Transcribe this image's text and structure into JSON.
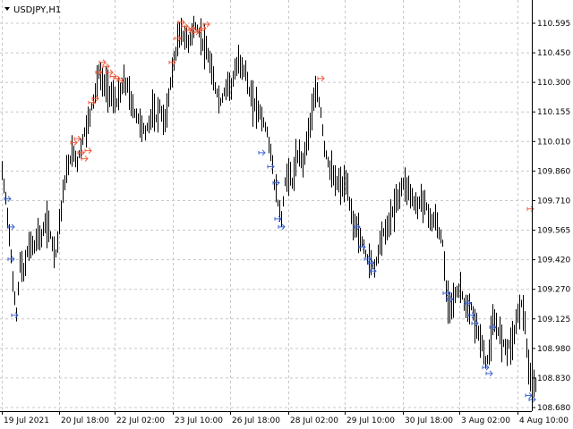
{
  "window": {
    "title": "USDJPY,H1",
    "menu_icon": "triangle-down-icon"
  },
  "colors": {
    "background": "#ffffff",
    "grid": "#c8c8c8",
    "bar": "#000000",
    "sell_arrow": "#f05a3c",
    "buy_arrow": "#3c64d2"
  },
  "chart_data": {
    "type": "bar",
    "symbol": "USDJPY",
    "timeframe": "H1",
    "y_ticks": [
      "110.595",
      "110.450",
      "110.300",
      "110.155",
      "110.010",
      "109.860",
      "109.710",
      "109.565",
      "109.420",
      "109.270",
      "109.125",
      "108.980",
      "108.830",
      "108.680"
    ],
    "x_ticks": [
      "19 Jul 2021",
      "20 Jul 18:00",
      "22 Jul 02:00",
      "23 Jul 10:00",
      "26 Jul 18:00",
      "28 Jul 02:00",
      "29 Jul 10:00",
      "30 Jul 18:00",
      "3 Aug 02:00",
      "4 Aug 10:00"
    ],
    "ylim": [
      108.65,
      110.66
    ],
    "grid": true,
    "series": [
      {
        "role": "price",
        "points": [
          [
            0,
            109.85
          ],
          [
            4,
            109.72
          ],
          [
            8,
            109.55
          ],
          [
            12,
            109.3
          ],
          [
            16,
            109.15
          ],
          [
            20,
            109.4
          ],
          [
            24,
            109.35
          ],
          [
            28,
            109.45
          ],
          [
            32,
            109.5
          ],
          [
            36,
            109.48
          ],
          [
            40,
            109.55
          ],
          [
            44,
            109.52
          ],
          [
            48,
            109.6
          ],
          [
            52,
            109.58
          ],
          [
            56,
            109.5
          ],
          [
            60,
            109.45
          ],
          [
            64,
            109.6
          ],
          [
            68,
            109.75
          ],
          [
            72,
            109.85
          ],
          [
            76,
            109.92
          ],
          [
            80,
            109.95
          ],
          [
            84,
            109.9
          ],
          [
            88,
            109.98
          ],
          [
            92,
            110.05
          ],
          [
            96,
            110.1
          ],
          [
            100,
            110.18
          ],
          [
            104,
            110.25
          ],
          [
            108,
            110.35
          ],
          [
            112,
            110.3
          ],
          [
            116,
            110.28
          ],
          [
            120,
            110.25
          ],
          [
            124,
            110.22
          ],
          [
            128,
            110.2
          ],
          [
            132,
            110.25
          ],
          [
            136,
            110.3
          ],
          [
            140,
            110.28
          ],
          [
            144,
            110.2
          ],
          [
            148,
            110.15
          ],
          [
            152,
            110.12
          ],
          [
            156,
            110.08
          ],
          [
            160,
            110.05
          ],
          [
            164,
            110.1
          ],
          [
            168,
            110.15
          ],
          [
            172,
            110.12
          ],
          [
            176,
            110.18
          ],
          [
            180,
            110.1
          ],
          [
            184,
            110.15
          ],
          [
            188,
            110.3
          ],
          [
            192,
            110.4
          ],
          [
            196,
            110.5
          ],
          [
            200,
            110.55
          ],
          [
            204,
            110.52
          ],
          [
            208,
            110.5
          ],
          [
            212,
            110.55
          ],
          [
            216,
            110.58
          ],
          [
            220,
            110.55
          ],
          [
            224,
            110.5
          ],
          [
            228,
            110.45
          ],
          [
            232,
            110.4
          ],
          [
            236,
            110.3
          ],
          [
            240,
            110.25
          ],
          [
            244,
            110.2
          ],
          [
            248,
            110.25
          ],
          [
            252,
            110.3
          ],
          [
            256,
            110.28
          ],
          [
            260,
            110.35
          ],
          [
            264,
            110.4
          ],
          [
            268,
            110.38
          ],
          [
            272,
            110.35
          ],
          [
            276,
            110.25
          ],
          [
            280,
            110.2
          ],
          [
            284,
            110.18
          ],
          [
            288,
            110.15
          ],
          [
            292,
            110.1
          ],
          [
            296,
            110.05
          ],
          [
            300,
            109.95
          ],
          [
            304,
            109.8
          ],
          [
            308,
            109.7
          ],
          [
            312,
            109.62
          ],
          [
            316,
            109.8
          ],
          [
            320,
            109.85
          ],
          [
            324,
            109.8
          ],
          [
            328,
            109.9
          ],
          [
            332,
            109.95
          ],
          [
            336,
            109.9
          ],
          [
            340,
            110.0
          ],
          [
            344,
            110.1
          ],
          [
            348,
            110.2
          ],
          [
            352,
            110.25
          ],
          [
            356,
            110.15
          ],
          [
            360,
            109.98
          ],
          [
            364,
            109.9
          ],
          [
            368,
            109.85
          ],
          [
            372,
            109.8
          ],
          [
            376,
            109.8
          ],
          [
            380,
            109.78
          ],
          [
            384,
            109.8
          ],
          [
            388,
            109.7
          ],
          [
            392,
            109.6
          ],
          [
            396,
            109.58
          ],
          [
            400,
            109.52
          ],
          [
            404,
            109.48
          ],
          [
            408,
            109.42
          ],
          [
            412,
            109.4
          ],
          [
            416,
            109.38
          ],
          [
            420,
            109.45
          ],
          [
            424,
            109.55
          ],
          [
            428,
            109.55
          ],
          [
            432,
            109.6
          ],
          [
            436,
            109.65
          ],
          [
            440,
            109.7
          ],
          [
            444,
            109.75
          ],
          [
            448,
            109.8
          ],
          [
            452,
            109.78
          ],
          [
            456,
            109.75
          ],
          [
            460,
            109.7
          ],
          [
            464,
            109.68
          ],
          [
            468,
            109.72
          ],
          [
            472,
            109.7
          ],
          [
            476,
            109.65
          ],
          [
            480,
            109.6
          ],
          [
            484,
            109.62
          ],
          [
            488,
            109.55
          ],
          [
            492,
            109.5
          ],
          [
            496,
            109.25
          ],
          [
            500,
            109.2
          ],
          [
            504,
            109.22
          ],
          [
            508,
            109.25
          ],
          [
            512,
            109.28
          ],
          [
            516,
            109.2
          ],
          [
            520,
            109.15
          ],
          [
            524,
            109.18
          ],
          [
            528,
            109.1
          ],
          [
            532,
            109.05
          ],
          [
            536,
            109.0
          ],
          [
            540,
            108.9
          ],
          [
            544,
            108.95
          ],
          [
            548,
            109.1
          ],
          [
            552,
            109.08
          ],
          [
            556,
            109.05
          ],
          [
            560,
            109.0
          ],
          [
            564,
            108.98
          ],
          [
            568,
            109.0
          ],
          [
            572,
            109.05
          ],
          [
            576,
            109.15
          ],
          [
            580,
            109.2
          ],
          [
            584,
            109.1
          ],
          [
            588,
            108.85
          ],
          [
            592,
            108.78
          ],
          [
            596,
            108.8
          ]
        ]
      }
    ],
    "sell_arrows": [
      [
        80,
        110.0
      ],
      [
        84,
        110.02
      ],
      [
        88,
        109.95
      ],
      [
        92,
        109.92
      ],
      [
        96,
        109.96
      ],
      [
        100,
        110.2
      ],
      [
        104,
        110.22
      ],
      [
        108,
        110.35
      ],
      [
        112,
        110.4
      ],
      [
        116,
        110.38
      ],
      [
        120,
        110.35
      ],
      [
        124,
        110.33
      ],
      [
        128,
        110.32
      ],
      [
        132,
        110.31
      ],
      [
        190,
        110.4
      ],
      [
        196,
        110.52
      ],
      [
        200,
        110.6
      ],
      [
        204,
        110.58
      ],
      [
        208,
        110.56
      ],
      [
        212,
        110.57
      ],
      [
        216,
        110.55
      ],
      [
        220,
        110.56
      ],
      [
        224,
        110.57
      ],
      [
        228,
        110.59
      ],
      [
        356,
        110.32
      ],
      [
        590,
        109.67
      ]
    ],
    "buy_arrows": [
      [
        6,
        109.72
      ],
      [
        10,
        109.58
      ],
      [
        10,
        109.42
      ],
      [
        14,
        109.14
      ],
      [
        290,
        109.95
      ],
      [
        300,
        109.88
      ],
      [
        306,
        109.8
      ],
      [
        308,
        109.62
      ],
      [
        312,
        109.58
      ],
      [
        396,
        109.58
      ],
      [
        402,
        109.48
      ],
      [
        408,
        109.42
      ],
      [
        412,
        109.4
      ],
      [
        414,
        109.36
      ],
      [
        496,
        109.25
      ],
      [
        500,
        109.22
      ],
      [
        520,
        109.2
      ],
      [
        524,
        109.14
      ],
      [
        528,
        109.1
      ],
      [
        540,
        108.88
      ],
      [
        544,
        108.85
      ],
      [
        548,
        109.08
      ],
      [
        588,
        108.74
      ],
      [
        592,
        108.72
      ]
    ]
  }
}
